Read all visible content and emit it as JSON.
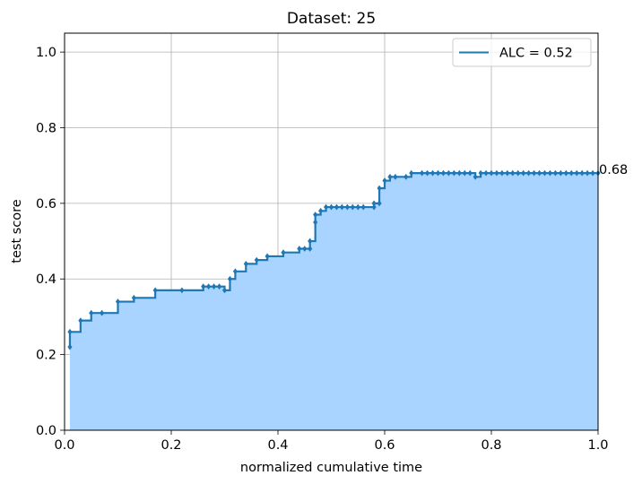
{
  "chart_data": {
    "type": "line",
    "title": "Dataset: 25",
    "xlabel": "normalized cumulative time",
    "ylabel": "test score",
    "xlim": [
      0,
      1
    ],
    "ylim": [
      0,
      1.05
    ],
    "xticks": [
      "0.0",
      "0.2",
      "0.4",
      "0.6",
      "0.8",
      "1.0"
    ],
    "yticks": [
      "0.0",
      "0.2",
      "0.4",
      "0.6",
      "0.8",
      "1.0"
    ],
    "grid": true,
    "legend_position": "top-right",
    "final_annotation": "0.68",
    "series": [
      {
        "name": "ALC = 0.52",
        "color": "#1f77b4",
        "fill_color": "#a8d4ff",
        "step": "post",
        "points": [
          [
            0.01,
            0.22
          ],
          [
            0.01,
            0.26
          ],
          [
            0.03,
            0.29
          ],
          [
            0.05,
            0.31
          ],
          [
            0.07,
            0.31
          ],
          [
            0.1,
            0.34
          ],
          [
            0.13,
            0.35
          ],
          [
            0.17,
            0.37
          ],
          [
            0.22,
            0.37
          ],
          [
            0.26,
            0.38
          ],
          [
            0.27,
            0.38
          ],
          [
            0.28,
            0.38
          ],
          [
            0.29,
            0.38
          ],
          [
            0.3,
            0.37
          ],
          [
            0.31,
            0.4
          ],
          [
            0.32,
            0.42
          ],
          [
            0.34,
            0.44
          ],
          [
            0.36,
            0.45
          ],
          [
            0.38,
            0.46
          ],
          [
            0.41,
            0.47
          ],
          [
            0.44,
            0.48
          ],
          [
            0.45,
            0.48
          ],
          [
            0.46,
            0.48
          ],
          [
            0.46,
            0.5
          ],
          [
            0.47,
            0.55
          ],
          [
            0.47,
            0.57
          ],
          [
            0.48,
            0.58
          ],
          [
            0.49,
            0.59
          ],
          [
            0.5,
            0.59
          ],
          [
            0.51,
            0.59
          ],
          [
            0.52,
            0.59
          ],
          [
            0.53,
            0.59
          ],
          [
            0.54,
            0.59
          ],
          [
            0.55,
            0.59
          ],
          [
            0.56,
            0.59
          ],
          [
            0.58,
            0.59
          ],
          [
            0.58,
            0.6
          ],
          [
            0.59,
            0.6
          ],
          [
            0.59,
            0.64
          ],
          [
            0.6,
            0.66
          ],
          [
            0.61,
            0.67
          ],
          [
            0.62,
            0.67
          ],
          [
            0.64,
            0.67
          ],
          [
            0.65,
            0.68
          ],
          [
            0.67,
            0.68
          ],
          [
            0.68,
            0.68
          ],
          [
            0.69,
            0.68
          ],
          [
            0.7,
            0.68
          ],
          [
            0.71,
            0.68
          ],
          [
            0.72,
            0.68
          ],
          [
            0.73,
            0.68
          ],
          [
            0.74,
            0.68
          ],
          [
            0.75,
            0.68
          ],
          [
            0.76,
            0.68
          ],
          [
            0.77,
            0.67
          ],
          [
            0.78,
            0.68
          ],
          [
            0.79,
            0.68
          ],
          [
            0.8,
            0.68
          ],
          [
            0.81,
            0.68
          ],
          [
            0.82,
            0.68
          ],
          [
            0.83,
            0.68
          ],
          [
            0.84,
            0.68
          ],
          [
            0.85,
            0.68
          ],
          [
            0.86,
            0.68
          ],
          [
            0.87,
            0.68
          ],
          [
            0.88,
            0.68
          ],
          [
            0.89,
            0.68
          ],
          [
            0.9,
            0.68
          ],
          [
            0.91,
            0.68
          ],
          [
            0.92,
            0.68
          ],
          [
            0.93,
            0.68
          ],
          [
            0.94,
            0.68
          ],
          [
            0.95,
            0.68
          ],
          [
            0.96,
            0.68
          ],
          [
            0.97,
            0.68
          ],
          [
            0.98,
            0.68
          ],
          [
            0.99,
            0.68
          ],
          [
            1.0,
            0.68
          ]
        ]
      }
    ]
  }
}
